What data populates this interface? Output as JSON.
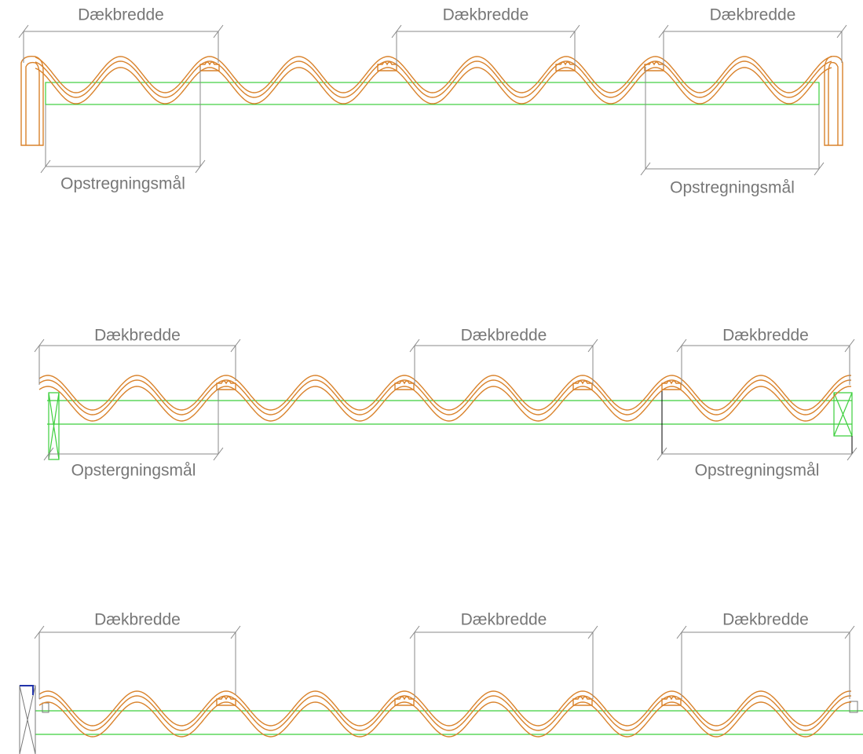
{
  "sections": [
    {
      "top_labels": [
        "Dækbredde",
        "Dækbredde",
        "Dækbredde"
      ],
      "bottom_labels": [
        "Opstregningsmål",
        "Opstregningsmål"
      ]
    },
    {
      "top_labels": [
        "Dækbredde",
        "Dækbredde",
        "Dækbredde"
      ],
      "bottom_labels": [
        "Opstergningsmål",
        "Opstregningsmål"
      ]
    },
    {
      "top_labels": [
        "Dækbredde",
        "Dækbredde",
        "Dækbredde"
      ]
    }
  ]
}
